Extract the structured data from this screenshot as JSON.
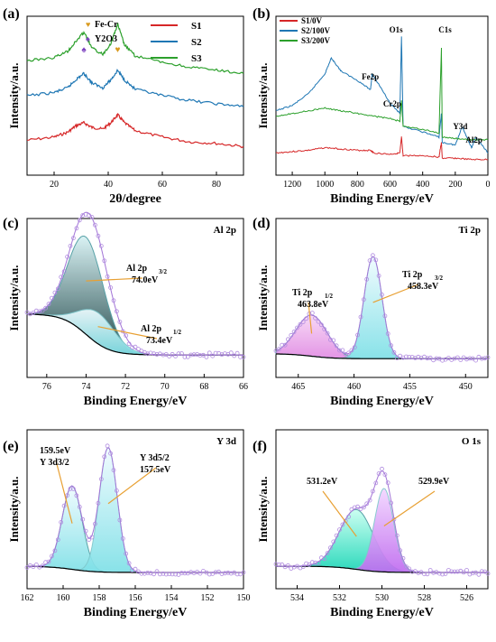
{
  "chart_data": [
    {
      "panel": "(a)",
      "type": "line",
      "xlabel": "2θ/degree",
      "ylabel": "Intensity/a.u.",
      "xlim": [
        10,
        90
      ],
      "xticks": [
        20,
        40,
        60,
        80
      ],
      "grid": false,
      "legend": {
        "placement": "top-right",
        "entries": [
          "S1",
          "S2",
          "S3"
        ]
      },
      "markers": [
        {
          "name": "Fe-Cr",
          "symbol": "♥",
          "x": 43.5
        },
        {
          "name": "Y2O3",
          "symbol": "♠",
          "x": 31
        }
      ],
      "series": [
        {
          "name": "S1",
          "color": "#d62728",
          "x": [
            10,
            20,
            25,
            28,
            31,
            34,
            38,
            41,
            43.5,
            46,
            50,
            60,
            70,
            80,
            90
          ],
          "y": [
            0.22,
            0.24,
            0.27,
            0.31,
            0.33,
            0.3,
            0.29,
            0.33,
            0.38,
            0.33,
            0.28,
            0.24,
            0.21,
            0.2,
            0.18
          ]
        },
        {
          "name": "S2",
          "color": "#1f77b4",
          "x": [
            10,
            20,
            25,
            28,
            31,
            34,
            38,
            41,
            43.5,
            46,
            50,
            60,
            70,
            80,
            90
          ],
          "y": [
            0.5,
            0.52,
            0.55,
            0.6,
            0.64,
            0.58,
            0.55,
            0.6,
            0.66,
            0.6,
            0.54,
            0.5,
            0.47,
            0.45,
            0.43
          ]
        },
        {
          "name": "S3",
          "color": "#2ca02c",
          "x": [
            10,
            20,
            25,
            28,
            31,
            34,
            38,
            41,
            43.5,
            46,
            50,
            60,
            70,
            80,
            90
          ],
          "y": [
            0.72,
            0.74,
            0.78,
            0.84,
            0.9,
            0.8,
            0.76,
            0.83,
            0.95,
            0.82,
            0.75,
            0.71,
            0.68,
            0.66,
            0.64
          ]
        }
      ]
    },
    {
      "panel": "(b)",
      "type": "line",
      "xlabel": "Binding Energy/eV",
      "ylabel": "Intensity/a.u.",
      "xlim": [
        1300,
        0
      ],
      "xticks": [
        1200,
        1000,
        800,
        600,
        400,
        200,
        0
      ],
      "grid": false,
      "legend": {
        "placement": "top-left",
        "entries": [
          "S1/0V",
          "S2/100V",
          "S3/200V"
        ]
      },
      "annotations": [
        {
          "text": "O1s",
          "x": 530
        },
        {
          "text": "C1s",
          "x": 285
        },
        {
          "text": "Fe2p",
          "x": 710
        },
        {
          "text": "Cr2p",
          "x": 576
        },
        {
          "text": "Y3d",
          "x": 158
        },
        {
          "text": "Al2p",
          "x": 74
        }
      ],
      "series": [
        {
          "name": "S1/0V",
          "color": "#d62728",
          "x": [
            1300,
            1200,
            1100,
            1000,
            900,
            800,
            720,
            700,
            600,
            540,
            530,
            520,
            400,
            300,
            285,
            280,
            200,
            100,
            0
          ],
          "y": [
            0.1,
            0.11,
            0.12,
            0.14,
            0.13,
            0.12,
            0.12,
            0.1,
            0.09,
            0.1,
            0.22,
            0.08,
            0.08,
            0.07,
            0.18,
            0.06,
            0.06,
            0.05,
            0.05
          ]
        },
        {
          "name": "S2/100V",
          "color": "#1f77b4",
          "x": [
            1300,
            1200,
            1100,
            1000,
            960,
            900,
            800,
            720,
            710,
            600,
            540,
            530,
            520,
            400,
            300,
            285,
            280,
            200,
            158,
            100,
            74,
            0
          ],
          "y": [
            0.42,
            0.46,
            0.55,
            0.7,
            0.82,
            0.72,
            0.65,
            0.58,
            0.7,
            0.48,
            0.4,
            0.98,
            0.3,
            0.26,
            0.22,
            0.4,
            0.18,
            0.16,
            0.3,
            0.14,
            0.22,
            0.1
          ]
        },
        {
          "name": "S3/200V",
          "color": "#2ca02c",
          "x": [
            1300,
            1200,
            1100,
            1000,
            900,
            800,
            700,
            600,
            540,
            530,
            520,
            400,
            300,
            285,
            280,
            200,
            100,
            0
          ],
          "y": [
            0.38,
            0.4,
            0.42,
            0.44,
            0.42,
            0.4,
            0.38,
            0.36,
            0.34,
            0.5,
            0.3,
            0.28,
            0.25,
            0.9,
            0.22,
            0.21,
            0.2,
            0.2
          ]
        }
      ]
    },
    {
      "panel": "(c)",
      "type": "line",
      "title": "Al 2p",
      "xlabel": "Binding Energy/eV",
      "ylabel": "Intensity/a.u.",
      "xlim": [
        77,
        66
      ],
      "xticks": [
        76,
        74,
        72,
        70,
        68,
        66
      ],
      "grid": false,
      "peaks": [
        {
          "label_main": "Al 2p",
          "label_sub": "3/2",
          "value_label": "74.0eV",
          "center": 74.0,
          "height": 0.78,
          "width": 0.9
        },
        {
          "label_main": "Al 2p",
          "label_sub": "1/2",
          "value_label": "73.4eV",
          "center": 73.4,
          "height": 0.25,
          "width": 0.9
        }
      ],
      "background": {
        "left": 0.38,
        "right": 0.05
      }
    },
    {
      "panel": "(d)",
      "type": "line",
      "title": "Ti 2p",
      "xlabel": "Binding Energy/eV",
      "ylabel": "Intensity/a.u.",
      "xlim": [
        467,
        448
      ],
      "xticks": [
        465,
        460,
        455,
        450
      ],
      "grid": false,
      "peaks": [
        {
          "label_main": "Ti 2p",
          "label_sub": "1/2",
          "value_label": "463.8eV",
          "center": 463.8,
          "height": 0.33,
          "width": 1.4
        },
        {
          "label_main": "Ti 2p",
          "label_sub": "3/2",
          "value_label": "458.3eV",
          "center": 458.3,
          "height": 0.82,
          "width": 0.8
        }
      ],
      "background": {
        "left": 0.06,
        "right": 0.02
      }
    },
    {
      "panel": "(e)",
      "type": "line",
      "title": "Y 3d",
      "xlabel": "Binding Energy/eV",
      "ylabel": "Intensity/a.u.",
      "xlim": [
        162,
        150
      ],
      "xticks": [
        162,
        160,
        158,
        156,
        154,
        152,
        150
      ],
      "grid": false,
      "peaks": [
        {
          "label_main": "159.5eV",
          "label_sub": "Y 3d3/2",
          "value_label": "159.5eV",
          "center": 159.5,
          "height": 0.67,
          "width": 0.55
        },
        {
          "label_main": "Y 3d5/2",
          "label_sub": "157.5eV",
          "value_label": "157.5eV",
          "center": 157.5,
          "height": 1.0,
          "width": 0.5
        }
      ],
      "background": {
        "left": 0.05,
        "right": 0.0
      }
    },
    {
      "panel": "(f)",
      "type": "line",
      "title": "O 1s",
      "xlabel": "Binding Energy/eV",
      "ylabel": "Intensity/a.u.",
      "xlim": [
        535,
        525
      ],
      "xticks": [
        534,
        532,
        530,
        528,
        526
      ],
      "grid": false,
      "peaks": [
        {
          "label_main": "531.2eV",
          "label_sub": "",
          "value_label": "531.2eV",
          "center": 531.2,
          "height": 0.48,
          "width": 0.8
        },
        {
          "label_main": "529.9eV",
          "label_sub": "",
          "value_label": "529.9eV",
          "center": 529.9,
          "height": 0.67,
          "width": 0.45
        }
      ],
      "background": {
        "left": 0.05,
        "right": 0.0
      }
    }
  ]
}
